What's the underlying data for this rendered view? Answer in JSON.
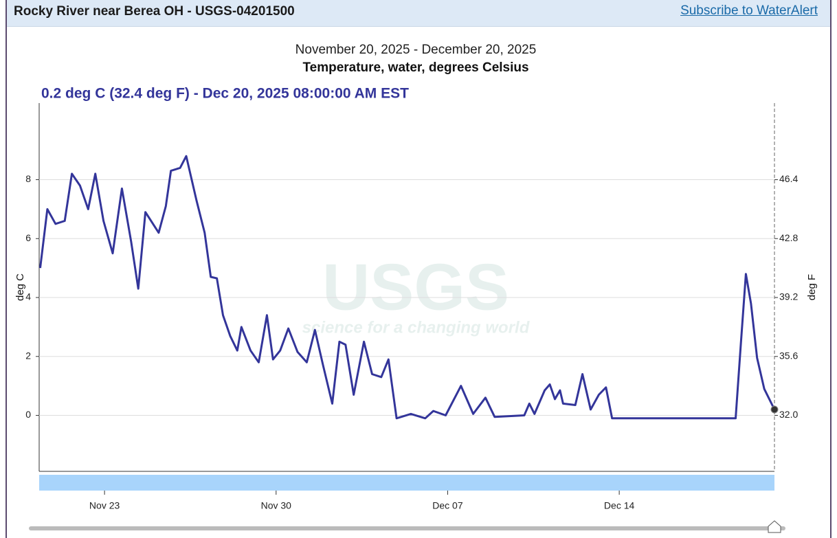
{
  "header": {
    "title": "Rocky River near Berea OH - USGS-04201500",
    "link": "Subscribe to WaterAlert"
  },
  "chart_data": {
    "type": "line",
    "subtitle": "November 20, 2025 - December 20, 2025",
    "title": "Temperature, water, degrees Celsius",
    "tooltip": "0.2 deg C (32.4 deg F) - Dec 20, 2025 08:00:00 AM EST",
    "watermark": {
      "logo": "USGS",
      "tagline": "science for a changing world"
    },
    "ylabel": "deg C",
    "y2label": "deg F",
    "xlim": [
      "2025-11-20T08:00",
      "2025-12-20T08:00"
    ],
    "xticks": [
      {
        "value": "2025-11-23T00:00",
        "label": "Nov 23"
      },
      {
        "value": "2025-11-30T00:00",
        "label": "Nov 30"
      },
      {
        "value": "2025-12-07T00:00",
        "label": "Dec 07"
      },
      {
        "value": "2025-12-14T00:00",
        "label": "Dec 14"
      }
    ],
    "ylim": [
      -1.9,
      10.6
    ],
    "yticks": [
      0,
      2,
      4,
      6,
      8
    ],
    "y2lim": [
      28.58,
      51.08
    ],
    "y2ticks": [
      {
        "value": 32,
        "label": "32.0"
      },
      {
        "value": 35.6,
        "label": "35.6"
      },
      {
        "value": 39.2,
        "label": "39.2"
      },
      {
        "value": 42.8,
        "label": "42.8"
      },
      {
        "value": 46.4,
        "label": "46.4"
      }
    ],
    "grid": true,
    "x": [
      "2025-11-20T09:00",
      "2025-11-20T16:00",
      "2025-11-21T00:00",
      "2025-11-21T09:00",
      "2025-11-21T16:00",
      "2025-11-22T00:00",
      "2025-11-22T08:00",
      "2025-11-22T15:00",
      "2025-11-22T23:00",
      "2025-11-23T08:00",
      "2025-11-23T17:00",
      "2025-11-24T02:00",
      "2025-11-24T09:00",
      "2025-11-24T16:00",
      "2025-11-25T05:00",
      "2025-11-25T12:00",
      "2025-11-25T17:00",
      "2025-11-26T02:00",
      "2025-11-26T08:00",
      "2025-11-26T18:00",
      "2025-11-27T02:00",
      "2025-11-27T08:00",
      "2025-11-27T14:00",
      "2025-11-27T20:00",
      "2025-11-28T03:00",
      "2025-11-28T10:00",
      "2025-11-28T14:00",
      "2025-11-28T23:00",
      "2025-11-29T07:00",
      "2025-11-29T15:00",
      "2025-11-29T21:00",
      "2025-11-30T04:00",
      "2025-11-30T12:00",
      "2025-11-30T21:00",
      "2025-12-01T06:00",
      "2025-12-01T14:00",
      "2025-12-01T22:00",
      "2025-12-02T07:00",
      "2025-12-02T14:00",
      "2025-12-02T20:00",
      "2025-12-03T04:00",
      "2025-12-03T14:00",
      "2025-12-03T22:00",
      "2025-12-04T07:00",
      "2025-12-04T14:00",
      "2025-12-04T22:00",
      "2025-12-05T12:00",
      "2025-12-06T02:00",
      "2025-12-06T10:00",
      "2025-12-06T22:00",
      "2025-12-07T13:00",
      "2025-12-08T01:00",
      "2025-12-08T13:00",
      "2025-12-08T22:00",
      "2025-12-10T03:00",
      "2025-12-10T08:00",
      "2025-12-10T13:00",
      "2025-12-10T23:00",
      "2025-12-11T04:00",
      "2025-12-11T09:00",
      "2025-12-11T14:00",
      "2025-12-11T17:00",
      "2025-12-12T05:00",
      "2025-12-12T12:00",
      "2025-12-12T20:00",
      "2025-12-13T04:00",
      "2025-12-13T11:00",
      "2025-12-13T17:00",
      "2025-12-18T18:00",
      "2025-12-18T23:00",
      "2025-12-19T04:00",
      "2025-12-19T09:00",
      "2025-12-19T15:00",
      "2025-12-19T22:00",
      "2025-12-20T08:00"
    ],
    "series": [
      {
        "name": "Temperature, water, degrees Celsius",
        "color": "#33359a",
        "axis": "y",
        "values": [
          5.0,
          7.0,
          6.5,
          6.6,
          8.2,
          7.8,
          7.0,
          8.2,
          6.6,
          5.5,
          7.7,
          5.9,
          4.3,
          6.9,
          6.2,
          7.1,
          8.3,
          8.4,
          8.8,
          7.3,
          6.2,
          4.7,
          4.65,
          3.4,
          2.7,
          2.2,
          3.0,
          2.2,
          1.8,
          3.4,
          1.9,
          2.2,
          2.95,
          2.15,
          1.8,
          2.9,
          1.7,
          0.4,
          2.5,
          2.4,
          0.7,
          2.5,
          1.4,
          1.3,
          1.9,
          -0.1,
          0.05,
          -0.1,
          0.15,
          0,
          1.0,
          0.05,
          0.6,
          -0.05,
          0,
          0.4,
          0.05,
          0.85,
          1.05,
          0.55,
          0.85,
          0.4,
          0.35,
          1.4,
          0.2,
          0.7,
          0.95,
          -0.1,
          -0.1,
          2.4,
          4.8,
          3.8,
          1.95,
          0.9,
          0.2
        ]
      }
    ]
  }
}
